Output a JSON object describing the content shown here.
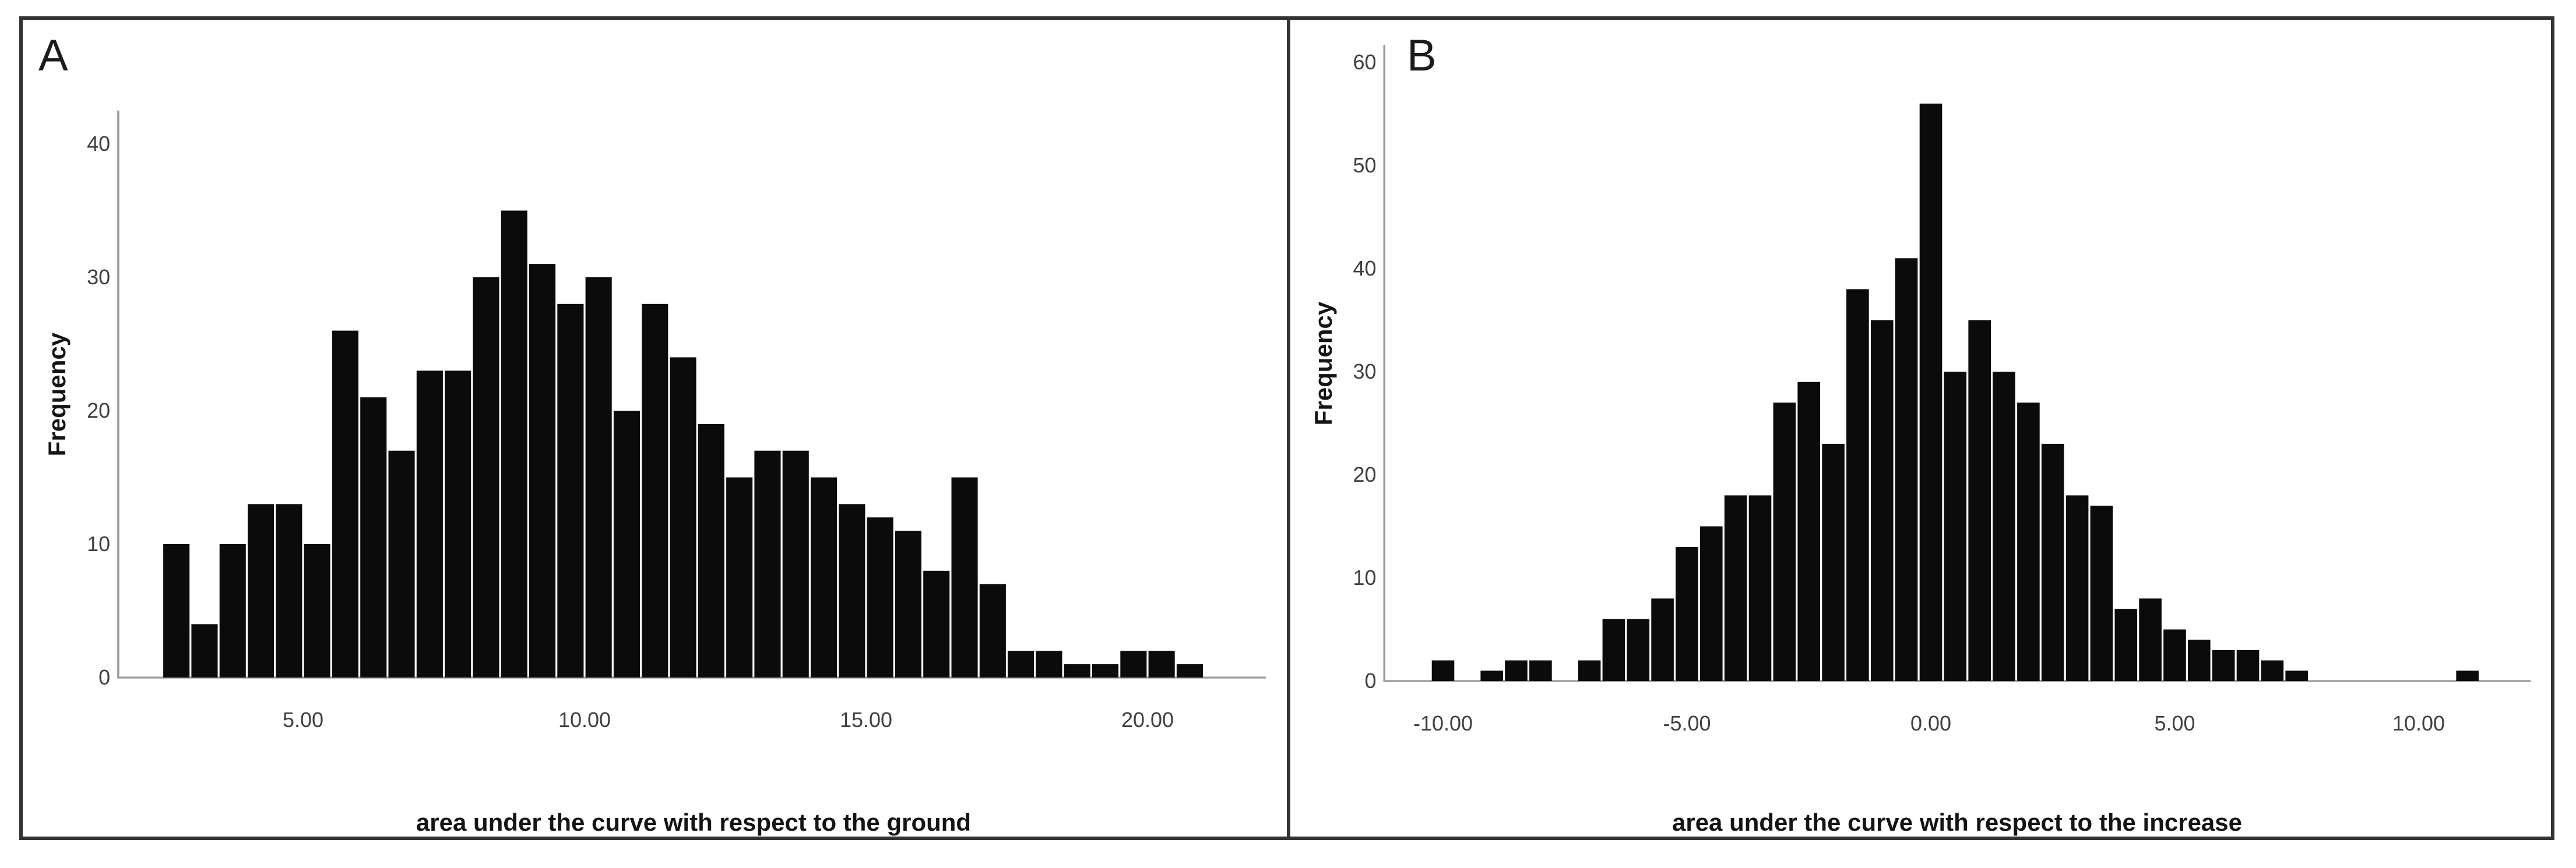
{
  "colors": {
    "bar": "#0b0b0b",
    "axis_line": "#9a9a9a",
    "tick_text": "#3f3f3f",
    "title_text": "#141414",
    "frame_border": "#333333",
    "background": "#ffffff"
  },
  "panels": [
    {
      "panel_label": "A",
      "ylabel": "Frequency",
      "xlabel": "area under the curve with respect to the ground"
    },
    {
      "panel_label": "B",
      "ylabel": "Frequency",
      "xlabel": "area under the curve with respect to the increase"
    }
  ],
  "chart_data": [
    {
      "type": "bar",
      "subtype": "histogram",
      "panel": "A",
      "title": "A",
      "xlabel": "area under the curve with respect to the ground",
      "ylabel": "Frequency",
      "bin_width": 0.5,
      "bin_centers": [
        2.75,
        3.25,
        3.75,
        4.25,
        4.75,
        5.25,
        5.75,
        6.25,
        6.75,
        7.25,
        7.75,
        8.25,
        8.75,
        9.25,
        9.75,
        10.25,
        10.75,
        11.25,
        11.75,
        12.25,
        12.75,
        13.25,
        13.75,
        14.25,
        14.75,
        15.25,
        15.75,
        16.25,
        16.75,
        17.25,
        17.75,
        18.25,
        18.75,
        19.25,
        19.75,
        20.25,
        20.75
      ],
      "counts": [
        10,
        4,
        10,
        13,
        13,
        10,
        26,
        21,
        17,
        23,
        23,
        30,
        35,
        31,
        28,
        30,
        20,
        28,
        24,
        19,
        15,
        17,
        17,
        15,
        13,
        12,
        11,
        8,
        15,
        7,
        2,
        2,
        1,
        1,
        2,
        2,
        1
      ],
      "x_tick_values": [
        5,
        10,
        15,
        20
      ],
      "x_tick_labels": [
        "5.00",
        "10.00",
        "15.00",
        "20.00"
      ],
      "y_tick_values": [
        0,
        10,
        20,
        30,
        40
      ],
      "y_tick_labels": [
        "0",
        "10",
        "20",
        "30",
        "40"
      ],
      "xlim": [
        1.72,
        22.1
      ],
      "ylim": [
        0,
        42.5
      ],
      "grid": false,
      "legend": false
    },
    {
      "type": "bar",
      "subtype": "histogram",
      "panel": "B",
      "title": "B",
      "xlabel": "area under the curve with respect to the increase",
      "ylabel": "Frequency",
      "bin_width": 0.5,
      "bin_centers": [
        -10,
        -9,
        -8.5,
        -8,
        -7,
        -6.5,
        -6,
        -5.5,
        -5,
        -4.5,
        -4,
        -3.5,
        -3,
        -2.5,
        -2,
        -1.5,
        -1,
        -0.5,
        0,
        0.5,
        1,
        1.5,
        2,
        2.5,
        3,
        3.5,
        4,
        4.5,
        5,
        5.5,
        6,
        6.5,
        7,
        7.5,
        11
      ],
      "counts": [
        2,
        1,
        2,
        2,
        2,
        6,
        6,
        8,
        13,
        15,
        18,
        18,
        27,
        29,
        23,
        38,
        35,
        41,
        56,
        30,
        35,
        30,
        27,
        23,
        18,
        17,
        7,
        8,
        5,
        4,
        3,
        3,
        2,
        1,
        1
      ],
      "x_tick_values": [
        -10,
        -5,
        0,
        5,
        10
      ],
      "x_tick_labels": [
        "-10.00",
        "-5.00",
        "0.00",
        "5.00",
        "10.00"
      ],
      "y_tick_values": [
        0,
        10,
        20,
        30,
        40,
        50,
        60
      ],
      "y_tick_labels": [
        "0",
        "10",
        "20",
        "30",
        "40",
        "50",
        "60"
      ],
      "xlim": [
        -11.2,
        12.3
      ],
      "ylim": [
        0,
        61.7
      ],
      "grid": false,
      "legend": false
    }
  ]
}
